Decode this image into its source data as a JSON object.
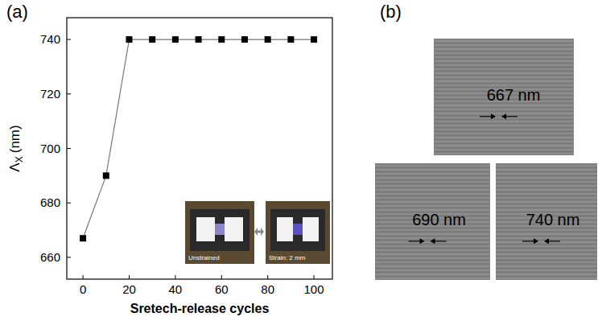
{
  "chart_data": {
    "type": "line",
    "panel_label": "(a)",
    "x_label": "Sretech-release cycles",
    "y_label": {
      "symbol": "Λ",
      "subscript": "X",
      "unit": "(nm)"
    },
    "x": [
      0,
      10,
      20,
      30,
      40,
      50,
      60,
      70,
      80,
      90,
      100
    ],
    "values": [
      667,
      690,
      740,
      740,
      740,
      740,
      740,
      740,
      740,
      740,
      740
    ],
    "xlim": [
      -7,
      108
    ],
    "ylim": [
      652,
      748
    ],
    "xticks": [
      0,
      20,
      40,
      60,
      80,
      100
    ],
    "yticks": [
      660,
      680,
      700,
      720,
      740
    ],
    "color": "#000000",
    "marker": "square",
    "grid": false,
    "inset": {
      "labels": [
        "Unstrained",
        "Strain: 2 mm"
      ]
    }
  },
  "sem_images": {
    "panel_label": "(b)",
    "labels": [
      "667 nm",
      "690 nm",
      "740 nm"
    ]
  }
}
